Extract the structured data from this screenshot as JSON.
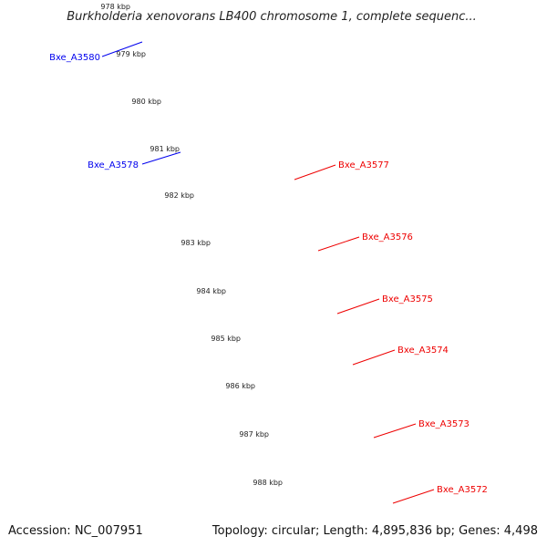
{
  "title": "Burkholderia xenovorans LB400 chromosome 1, complete sequenc...",
  "footer": {
    "accession": "Accession: NC_007951",
    "summary": "Topology: circular; Length: 4,895,836 bp; Genes: 4,498"
  },
  "ticks": [
    "978 kbp",
    "979 kbp",
    "980 kbp",
    "981 kbp",
    "982 kbp",
    "983 kbp",
    "984 kbp",
    "985 kbp",
    "986 kbp",
    "987 kbp",
    "988 kbp"
  ],
  "genes": [
    {
      "label": "Bxe_A3580",
      "color": "#0000ee"
    },
    {
      "label": "Bxe_A3578",
      "color": "#0000ee"
    },
    {
      "label": "Bxe_A3577",
      "color": "#ee0000"
    },
    {
      "label": "Bxe_A3576",
      "color": "#ee0000"
    },
    {
      "label": "Bxe_A3575",
      "color": "#ee0000"
    },
    {
      "label": "Bxe_A3574",
      "color": "#ee0000"
    },
    {
      "label": "Bxe_A3573",
      "color": "#ee0000"
    },
    {
      "label": "Bxe_A3572",
      "color": "#ee0000"
    }
  ],
  "colors": {
    "backbone": "#888888",
    "tick": "#2a8a2a",
    "forward_gene": "#0000ee",
    "reverse_gene": "#ee0000",
    "orange_gene": "#ff9900",
    "purple_gene": "#7766cc"
  }
}
